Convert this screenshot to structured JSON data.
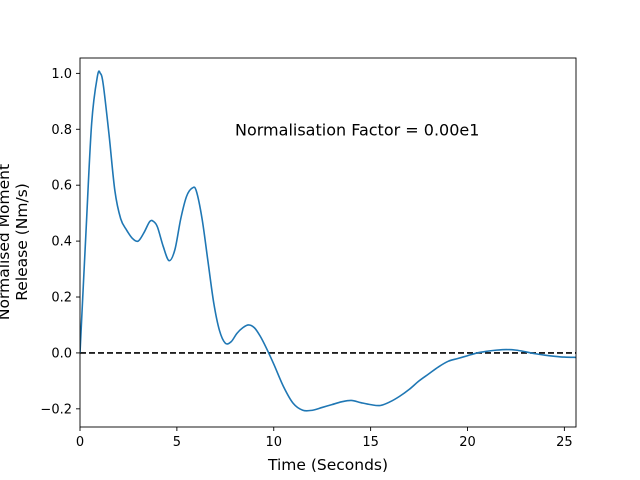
{
  "chart_data": {
    "type": "line",
    "title": "",
    "xlabel": "Time (Seconds)",
    "ylabel_lines": [
      "Normalised Moment",
      "Release (Nm/s)"
    ],
    "xlim": [
      0,
      25.6
    ],
    "ylim": [
      -0.265,
      1.055
    ],
    "xticks": [
      0,
      5,
      10,
      15,
      20,
      25
    ],
    "yticks": [
      -0.2,
      0.0,
      0.2,
      0.4,
      0.6,
      0.8,
      1.0
    ],
    "ytick_labels": [
      "−0.2",
      "0.0",
      "0.2",
      "0.4",
      "0.6",
      "0.8",
      "1.0"
    ],
    "annotation": {
      "text": "Normalisation Factor = 0.00e1",
      "x": 8.0,
      "y": 0.8
    },
    "reference_line": {
      "y": 0.0,
      "style": "dashed",
      "color": "#000000"
    },
    "series": [
      {
        "color": "#1f77b4",
        "x": [
          0.0,
          0.3,
          0.6,
          0.9,
          1.05,
          1.2,
          1.5,
          1.8,
          2.1,
          2.4,
          2.7,
          3.0,
          3.3,
          3.6,
          3.8,
          4.0,
          4.3,
          4.6,
          4.9,
          5.2,
          5.5,
          5.8,
          6.0,
          6.3,
          6.6,
          6.9,
          7.2,
          7.5,
          7.8,
          8.1,
          8.4,
          8.7,
          9.0,
          9.3,
          9.6,
          10.0,
          10.5,
          11.0,
          11.5,
          12.0,
          12.5,
          13.0,
          13.5,
          14.0,
          14.5,
          15.0,
          15.5,
          16.0,
          16.5,
          17.0,
          17.5,
          18.0,
          18.5,
          19.0,
          19.5,
          20.0,
          20.5,
          21.0,
          21.5,
          22.0,
          22.5,
          23.0,
          23.5,
          24.0,
          24.5,
          25.0,
          25.6
        ],
        "y": [
          0.0,
          0.42,
          0.82,
          0.99,
          1.0,
          0.96,
          0.78,
          0.58,
          0.48,
          0.44,
          0.41,
          0.4,
          0.43,
          0.47,
          0.47,
          0.45,
          0.38,
          0.33,
          0.37,
          0.48,
          0.56,
          0.59,
          0.58,
          0.48,
          0.33,
          0.18,
          0.08,
          0.035,
          0.04,
          0.07,
          0.09,
          0.1,
          0.09,
          0.06,
          0.02,
          -0.04,
          -0.12,
          -0.18,
          -0.205,
          -0.205,
          -0.195,
          -0.185,
          -0.175,
          -0.17,
          -0.178,
          -0.185,
          -0.188,
          -0.175,
          -0.155,
          -0.13,
          -0.1,
          -0.075,
          -0.05,
          -0.03,
          -0.02,
          -0.01,
          0.0,
          0.006,
          0.01,
          0.012,
          0.01,
          0.004,
          -0.003,
          -0.008,
          -0.012,
          -0.015,
          -0.016
        ]
      }
    ]
  }
}
